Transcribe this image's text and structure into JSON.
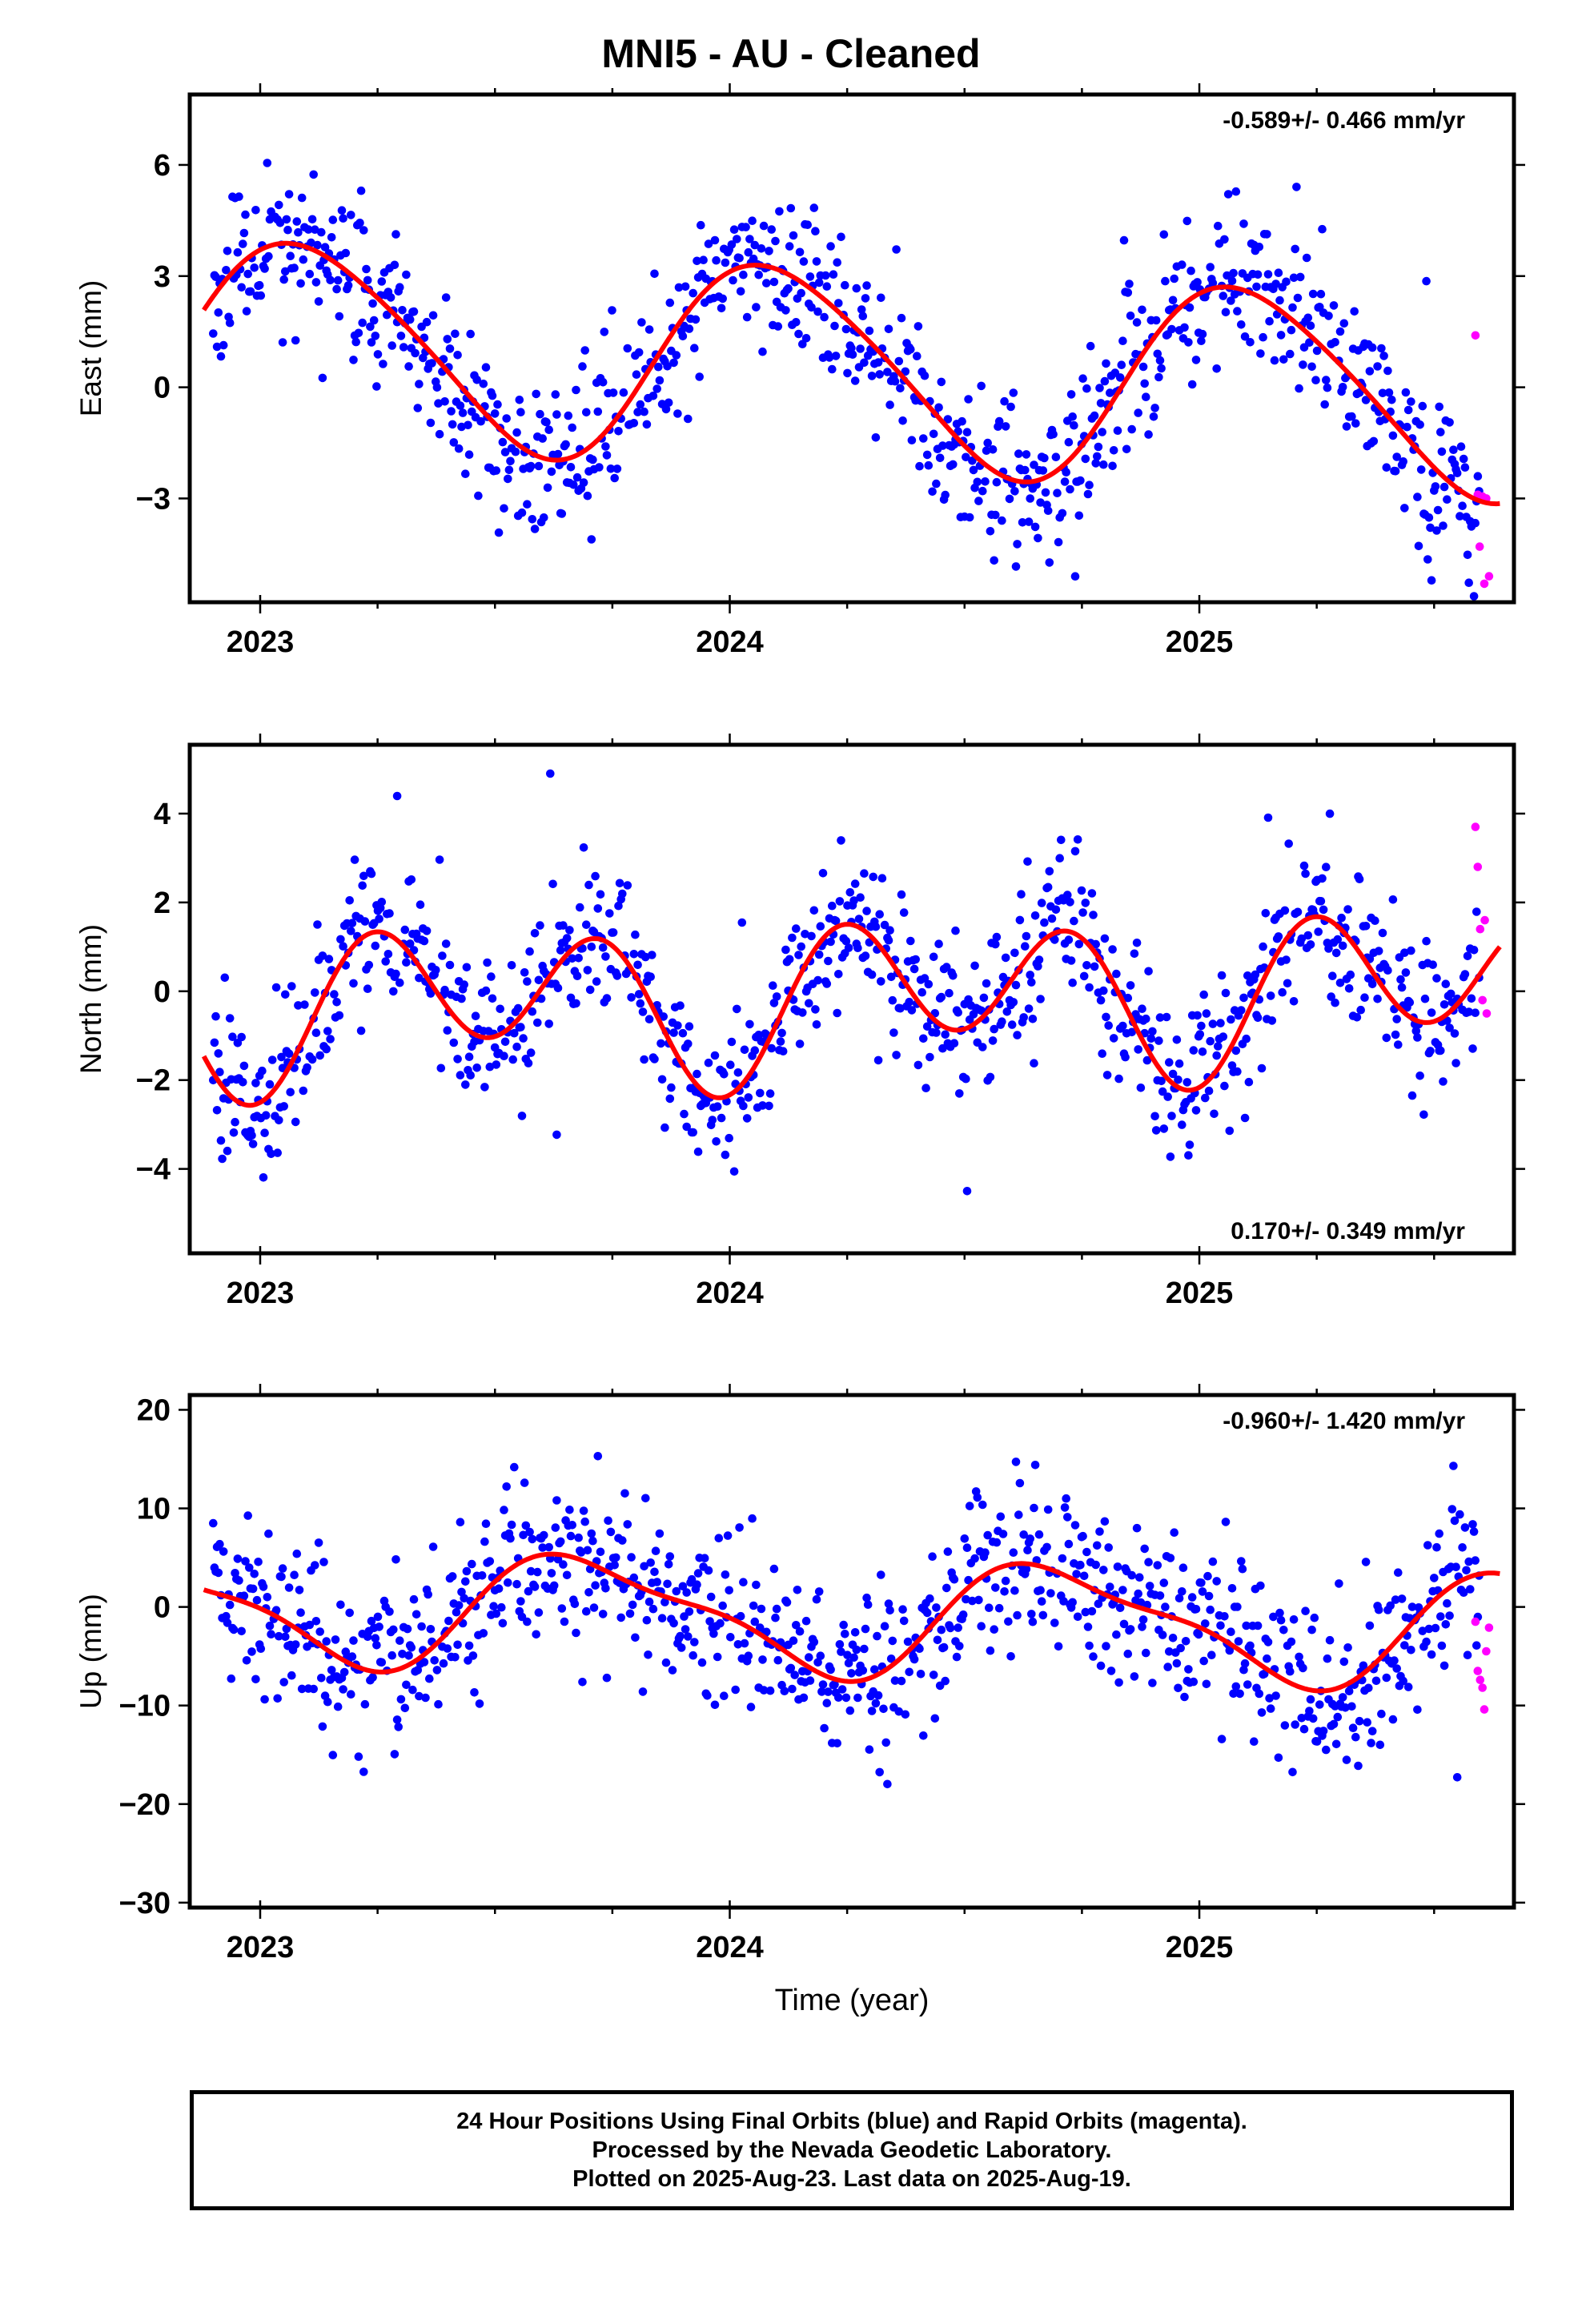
{
  "title": "MNI5  - AU - Cleaned",
  "colors": {
    "final": "#0000ff",
    "rapid": "#ff00ff",
    "model": "#ff0000",
    "axis": "#000000"
  },
  "xaxis": {
    "label": "Time (year)",
    "range": [
      2022.85,
      2025.67
    ],
    "ticks": [
      2023,
      2024,
      2025
    ],
    "tick_labels": [
      "2023",
      "2024",
      "2025"
    ],
    "minor_step": 0.25
  },
  "footer": {
    "line1": "24 Hour Positions Using Final Orbits (blue) and Rapid Orbits (magenta).",
    "line2": "Processed by the Nevada Geodetic Laboratory.",
    "line3": "Plotted on 2025-Aug-23. Last data on 2025-Aug-19."
  },
  "chart_data": [
    {
      "type": "scatter",
      "panel": "east",
      "ylabel": "East (mm)",
      "ylim": [
        -5.8,
        7.9
      ],
      "yticks": [
        -3,
        0,
        3,
        6
      ],
      "ytick_labels": [
        "−3",
        "0",
        "3",
        "6"
      ],
      "rate_label": "-0.589+/- 0.466 mm/yr",
      "rate_position": "top-right",
      "model": {
        "trend_mm_per_yr": -0.589,
        "mean": 0.55,
        "annual": [
          {
            "cos": 2.2,
            "sin": 1.55
          },
          {
            "cos": 0.25,
            "sin": -0.2
          }
        ]
      },
      "scatter_sd": 1.05,
      "seed": 11,
      "final_range": [
        2022.9,
        2025.6
      ],
      "rapid_points": [
        [
          2025.588,
          1.4
        ],
        [
          2025.593,
          -2.9
        ],
        [
          2025.597,
          -4.3
        ],
        [
          2025.603,
          -2.95
        ],
        [
          2025.607,
          -5.3
        ],
        [
          2025.611,
          -3.0
        ],
        [
          2025.617,
          -5.1
        ]
      ]
    },
    {
      "type": "scatter",
      "panel": "north",
      "ylabel": "North (mm)",
      "ylim": [
        -5.9,
        5.55
      ],
      "yticks": [
        -4,
        -2,
        0,
        2,
        4
      ],
      "ytick_labels": [
        "−4",
        "−2",
        "0",
        "2",
        "4"
      ],
      "rate_label": "0.170+/- 0.349 mm/yr",
      "rate_position": "bottom-right",
      "model": {
        "trend_mm_per_yr": 0.17,
        "mean": -0.15,
        "annual": [
          {
            "cos": -0.7,
            "sin": 0.2
          },
          {
            "cos": -1.45,
            "sin": 0.35
          }
        ]
      },
      "scatter_sd": 0.85,
      "seed": 29,
      "final_range": [
        2022.9,
        2025.6
      ],
      "rapid_points": [
        [
          2025.588,
          3.7
        ],
        [
          2025.593,
          2.8
        ],
        [
          2025.598,
          1.4
        ],
        [
          2025.603,
          -0.2
        ],
        [
          2025.608,
          1.6
        ],
        [
          2025.612,
          -0.5
        ]
      ]
    },
    {
      "type": "scatter",
      "panel": "up",
      "ylabel": "Up (mm)",
      "ylim": [
        -30.5,
        21.5
      ],
      "yticks": [
        -30,
        -20,
        -10,
        0,
        10,
        20
      ],
      "ytick_labels": [
        "−30",
        "−20",
        "−10",
        "0",
        "10",
        "20"
      ],
      "rate_label": "-0.960+/- 1.420 mm/yr",
      "rate_position": "top-right",
      "model": {
        "trend_mm_per_yr": -0.96,
        "mean": -1.0,
        "annual": [
          {
            "cos": -1.6,
            "sin": -5.2
          },
          {
            "cos": 1.3,
            "sin": 1.0
          }
        ]
      },
      "scatter_sd": 4.1,
      "seed": 53,
      "final_range": [
        2022.9,
        2025.6
      ],
      "rapid_points": [
        [
          2025.588,
          -1.5
        ],
        [
          2025.593,
          -6.5
        ],
        [
          2025.598,
          -7.4
        ],
        [
          2025.603,
          -8.2
        ],
        [
          2025.607,
          -10.4
        ],
        [
          2025.611,
          -4.5
        ],
        [
          2025.617,
          -2.1
        ]
      ]
    }
  ]
}
